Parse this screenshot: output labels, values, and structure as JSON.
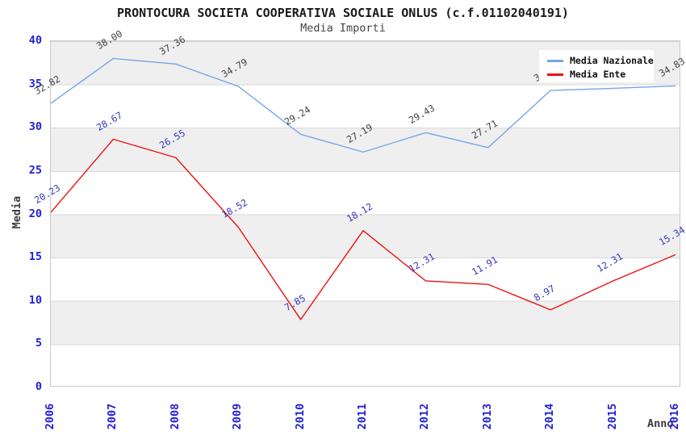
{
  "title": "PRONTOCURA SOCIETA COOPERATIVA SOCIALE ONLUS (c.f.01102040191)",
  "subtitle": "Media Importi",
  "axes": {
    "y_title": "Media",
    "x_title": "Anno",
    "y_ticks": [
      "40",
      "35",
      "30",
      "25",
      "20",
      "15",
      "10",
      "5",
      "0"
    ],
    "x_ticks": [
      "2006",
      "2007",
      "2008",
      "2009",
      "2010",
      "2011",
      "2012",
      "2013",
      "2014",
      "2015",
      "2016"
    ]
  },
  "legend": {
    "items": [
      {
        "label": "Media Nazionale",
        "color": "#76a5e8"
      },
      {
        "label": "Media Ente",
        "color": "#ee1111"
      }
    ]
  },
  "colors": {
    "band_gray": "#efefef",
    "gridline": "#d9d9d9",
    "plot_border": "#c9c9c9",
    "tick_text": "#1f1fd8",
    "nazionale_line": "#76a5e8",
    "nazionale_label_text": "#404040",
    "ente_line": "#ee1111",
    "ente_label_text": "#3537bd"
  },
  "chart_data": {
    "type": "line",
    "title": "PRONTOCURA SOCIETA COOPERATIVA SOCIALE ONLUS (c.f.01102040191)",
    "subtitle": "Media Importi",
    "xlabel": "Anno",
    "ylabel": "Media",
    "ylim": [
      0,
      40
    ],
    "grid": "horizontal-bands-every-5",
    "legend_position": "top-right-inside",
    "x": [
      2006,
      2007,
      2008,
      2009,
      2010,
      2011,
      2012,
      2013,
      2014,
      2015,
      2016
    ],
    "series": [
      {
        "name": "Media Nazionale",
        "color": "#76a5e8",
        "label_color": "#404040",
        "values": [
          32.82,
          38.0,
          37.36,
          34.79,
          29.24,
          27.19,
          29.43,
          27.71,
          34.31,
          34.55,
          34.83
        ],
        "labels": [
          "32.82",
          "38.00",
          "37.36",
          "34.79",
          "29.24",
          "27.19",
          "29.43",
          "27.71",
          "34.31",
          "34.55",
          "34.83"
        ],
        "labels_hidden_by_legend": [
          2014,
          2015
        ]
      },
      {
        "name": "Media Ente",
        "color": "#ee1111",
        "label_color": "#3537bd",
        "values": [
          20.23,
          28.67,
          26.55,
          18.52,
          7.85,
          18.12,
          12.31,
          11.91,
          8.97,
          12.31,
          15.34
        ],
        "labels": [
          "20.23",
          "28.67",
          "26.55",
          "18.52",
          "7.85",
          "18.12",
          "12.31",
          "11.91",
          "8.97",
          "12.31",
          "15.34"
        ]
      }
    ]
  }
}
